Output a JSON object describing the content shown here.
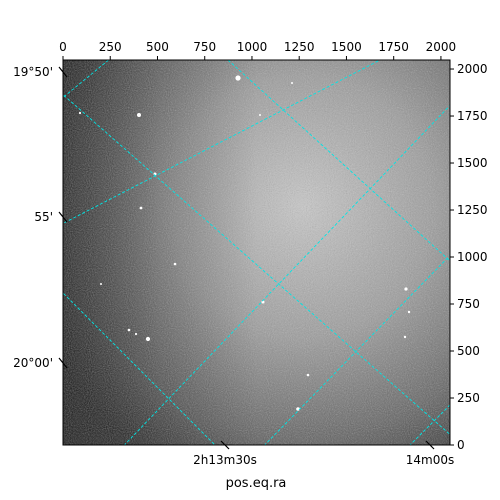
{
  "chart_data": {
    "type": "heatmap",
    "image": "astronomical grayscale sky image with equatorial coordinate grid overlay",
    "colormap": "gray",
    "grid_color": "#00e5e5",
    "pixel_axes": {
      "x_ticks": [
        0,
        250,
        500,
        750,
        1000,
        1250,
        1500,
        1750,
        2000
      ],
      "y_ticks": [
        0,
        250,
        500,
        750,
        1000,
        1250,
        1500,
        1750,
        2000
      ],
      "xlim": [
        0,
        2048
      ],
      "ylim": [
        0,
        2048
      ]
    },
    "world_axes": {
      "dec_labels": [
        "19°50'",
        "55'",
        "20°00'"
      ],
      "ra_labels": [
        "2h13m30s",
        "14m00s"
      ],
      "xlabel": "pos.eq.ra"
    }
  }
}
